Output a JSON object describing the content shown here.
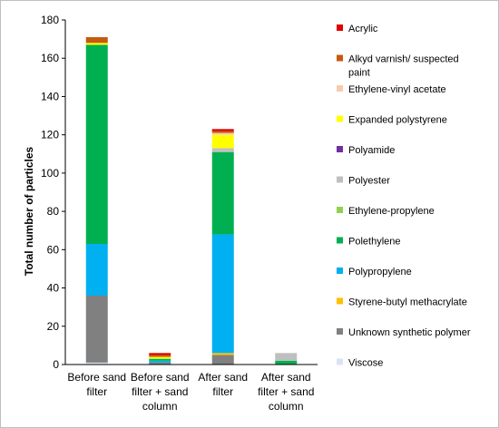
{
  "chart_data": {
    "type": "bar",
    "stacked": true,
    "ylabel": "Total number of particles",
    "ylim": [
      0,
      180
    ],
    "yticks": [
      0,
      20,
      40,
      60,
      80,
      100,
      120,
      140,
      160,
      180
    ],
    "categories": [
      [
        "Before sand",
        "filter"
      ],
      [
        "Before sand",
        "filter + sand",
        "column"
      ],
      [
        "After sand",
        "filter"
      ],
      [
        "After sand",
        "filter + sand",
        "column"
      ]
    ],
    "series": [
      {
        "name": "Viscose",
        "color": "#dae3f3",
        "values": [
          1,
          0,
          0,
          0
        ]
      },
      {
        "name": "Unknown synthetic polymer",
        "color": "#808080",
        "values": [
          35,
          1,
          5,
          0
        ]
      },
      {
        "name": "Styrene-butyl methacrylate",
        "color": "#ffc000",
        "values": [
          0,
          0,
          1,
          0
        ]
      },
      {
        "name": "Polypropylene",
        "color": "#00b0f0",
        "values": [
          27,
          1,
          62,
          0
        ]
      },
      {
        "name": "Polethylene",
        "color": "#00b050",
        "values": [
          104,
          1,
          43,
          2
        ]
      },
      {
        "name": "Ethylene-propylene",
        "color": "#92d050",
        "values": [
          0,
          0,
          0,
          0
        ]
      },
      {
        "name": "Polyester",
        "color": "#bfbfbf",
        "values": [
          0,
          0,
          2,
          4
        ]
      },
      {
        "name": "Polyamide",
        "color": "#7030a0",
        "values": [
          0,
          0,
          0,
          0
        ]
      },
      {
        "name": "Expanded polystyrene",
        "color": "#ffff00",
        "values": [
          1,
          1,
          7,
          0
        ]
      },
      {
        "name": "Ethylene-vinyl acetate",
        "color": "#f8cbad",
        "values": [
          0,
          0,
          1,
          0
        ]
      },
      {
        "name": "Alkyd varnish/ suspected paint",
        "color": "#c55a11",
        "values": [
          3,
          1,
          1,
          0
        ]
      },
      {
        "name": "Acrylic",
        "color": "#e00000",
        "values": [
          0,
          1,
          1,
          0
        ]
      }
    ],
    "legend": [
      {
        "label": [
          "Acrylic"
        ],
        "color": "#e00000"
      },
      {
        "label": [
          "Alkyd varnish/ suspected",
          "paint"
        ],
        "color": "#c55a11"
      },
      {
        "label": [
          "Ethylene-vinyl acetate"
        ],
        "color": "#f8cbad"
      },
      {
        "label": [
          "Expanded polystyrene"
        ],
        "color": "#ffff00"
      },
      {
        "label": [
          "Polyamide"
        ],
        "color": "#7030a0"
      },
      {
        "label": [
          "Polyester"
        ],
        "color": "#bfbfbf"
      },
      {
        "label": [
          "Ethylene-propylene"
        ],
        "color": "#92d050"
      },
      {
        "label": [
          "Polethylene"
        ],
        "color": "#00b050"
      },
      {
        "label": [
          "Polypropylene"
        ],
        "color": "#00b0f0"
      },
      {
        "label": [
          "Styrene-butyl methacrylate"
        ],
        "color": "#ffc000"
      },
      {
        "label": [
          "Unknown synthetic polymer"
        ],
        "color": "#808080"
      },
      {
        "label": [
          "Viscose"
        ],
        "color": "#dae3f3"
      }
    ],
    "grid": false,
    "legend_position": "right"
  }
}
